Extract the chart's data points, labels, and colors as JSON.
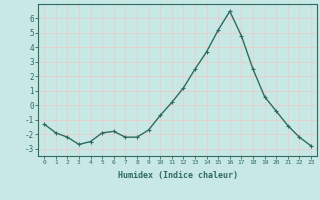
{
  "x": [
    0,
    1,
    2,
    3,
    4,
    5,
    6,
    7,
    8,
    9,
    10,
    11,
    12,
    13,
    14,
    15,
    16,
    17,
    18,
    19,
    20,
    21,
    22,
    23
  ],
  "y": [
    -1.3,
    -1.9,
    -2.2,
    -2.7,
    -2.5,
    -1.9,
    -1.8,
    -2.2,
    -2.2,
    -1.7,
    -0.7,
    0.2,
    1.2,
    2.5,
    3.7,
    5.2,
    6.5,
    4.8,
    2.5,
    0.6,
    -0.4,
    -1.4,
    -2.2,
    -2.8
  ],
  "xlabel": "Humidex (Indice chaleur)",
  "xlim": [
    -0.5,
    23.5
  ],
  "ylim": [
    -3.5,
    7.0
  ],
  "yticks": [
    -3,
    -2,
    -1,
    0,
    1,
    2,
    3,
    4,
    5,
    6
  ],
  "line_color": "#2e6b5e",
  "marker": "+",
  "bg_color": "#c8e8e5",
  "grid_color": "#f0c8c8",
  "tick_label_color": "#2e6b5e",
  "xlabel_color": "#2e6b5e",
  "axis_color": "#2e6b5e"
}
